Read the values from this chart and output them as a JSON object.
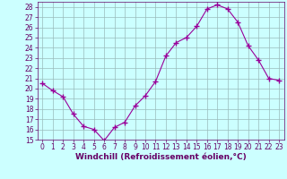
{
  "x": [
    0,
    1,
    2,
    3,
    4,
    5,
    6,
    7,
    8,
    9,
    10,
    11,
    12,
    13,
    14,
    15,
    16,
    17,
    18,
    19,
    20,
    21,
    22,
    23
  ],
  "y": [
    20.5,
    19.8,
    19.2,
    17.5,
    16.3,
    16.0,
    14.9,
    16.2,
    16.7,
    18.3,
    19.3,
    20.7,
    23.2,
    24.5,
    25.0,
    26.1,
    27.8,
    28.2,
    27.8,
    26.5,
    24.2,
    22.8,
    21.0,
    20.8
  ],
  "line_color": "#990099",
  "marker": "+",
  "marker_size": 4,
  "background_color": "#ccffff",
  "grid_color": "#99bbbb",
  "xlabel": "Windchill (Refroidissement éolien,°C)",
  "ylim": [
    15,
    28.5
  ],
  "yticks": [
    15,
    16,
    17,
    18,
    19,
    20,
    21,
    22,
    23,
    24,
    25,
    26,
    27,
    28
  ],
  "xticks": [
    0,
    1,
    2,
    3,
    4,
    5,
    6,
    7,
    8,
    9,
    10,
    11,
    12,
    13,
    14,
    15,
    16,
    17,
    18,
    19,
    20,
    21,
    22,
    23
  ],
  "xlim": [
    -0.5,
    23.5
  ],
  "tick_fontsize": 5.5,
  "xlabel_fontsize": 6.5
}
